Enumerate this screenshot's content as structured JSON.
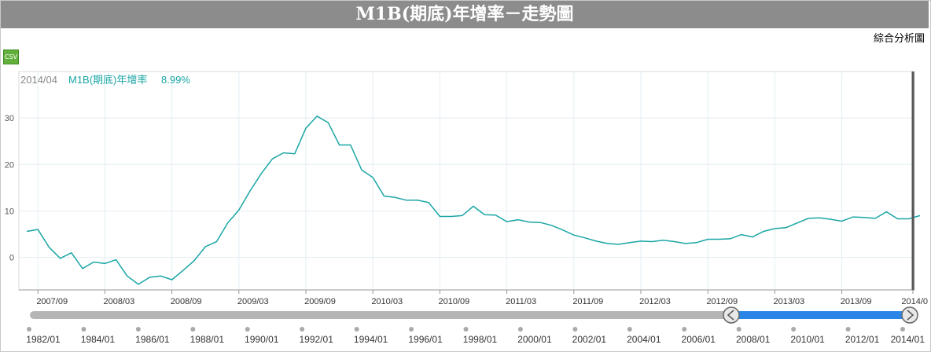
{
  "header": {
    "title": "M1B(期底)年增率－走勢圖"
  },
  "toolbar": {
    "analysis_link": "綜合分析圖",
    "csv_label": "CSV"
  },
  "tooltip": {
    "date": "2014/04",
    "series_label": "M1B(期底)年增率",
    "value_text": "8.99%"
  },
  "colors": {
    "line": "#1aa5a5",
    "title_bg": "#8c8c8c",
    "selection": "#2b85e6"
  },
  "chart_data": {
    "type": "line",
    "title": "M1B(期底)年增率－走勢圖",
    "xlabel": "",
    "ylabel": "",
    "ylim": [
      -7,
      40
    ],
    "y_ticks": [
      0,
      10,
      20,
      30
    ],
    "x_ticks": [
      "2007/09",
      "2008/03",
      "2008/09",
      "2009/03",
      "2009/09",
      "2010/03",
      "2010/09",
      "2011/03",
      "2011/09",
      "2012/03",
      "2012/09",
      "2013/03",
      "2013/09",
      "2014/0"
    ],
    "grid": true,
    "series": [
      {
        "name": "M1B(期底)年增率",
        "x": [
          "2007/08",
          "2007/09",
          "2007/10",
          "2007/11",
          "2007/12",
          "2008/01",
          "2008/02",
          "2008/03",
          "2008/04",
          "2008/05",
          "2008/06",
          "2008/07",
          "2008/08",
          "2008/09",
          "2008/10",
          "2008/11",
          "2008/12",
          "2009/01",
          "2009/02",
          "2009/03",
          "2009/04",
          "2009/05",
          "2009/06",
          "2009/07",
          "2009/08",
          "2009/09",
          "2009/10",
          "2009/11",
          "2009/12",
          "2010/01",
          "2010/02",
          "2010/03",
          "2010/04",
          "2010/05",
          "2010/06",
          "2010/07",
          "2010/08",
          "2010/09",
          "2010/10",
          "2010/11",
          "2010/12",
          "2011/01",
          "2011/02",
          "2011/03",
          "2011/04",
          "2011/05",
          "2011/06",
          "2011/07",
          "2011/08",
          "2011/09",
          "2011/10",
          "2011/11",
          "2011/12",
          "2012/01",
          "2012/02",
          "2012/03",
          "2012/04",
          "2012/05",
          "2012/06",
          "2012/07",
          "2012/08",
          "2012/09",
          "2012/10",
          "2012/11",
          "2012/12",
          "2013/01",
          "2013/02",
          "2013/03",
          "2013/04",
          "2013/05",
          "2013/06",
          "2013/07",
          "2013/08",
          "2013/09",
          "2013/10",
          "2013/11",
          "2013/12",
          "2014/01",
          "2014/02",
          "2014/03",
          "2014/04"
        ],
        "values": [
          5.6,
          6.0,
          2.2,
          -0.2,
          1.0,
          -2.4,
          -1.0,
          -1.3,
          -0.5,
          -4.0,
          -5.8,
          -4.3,
          -4.0,
          -4.8,
          -2.8,
          -0.7,
          2.3,
          3.4,
          7.4,
          10.2,
          14.3,
          18.0,
          21.2,
          22.5,
          22.3,
          27.8,
          30.4,
          29.0,
          24.2,
          24.2,
          18.8,
          17.2,
          13.2,
          12.9,
          12.3,
          12.3,
          11.8,
          8.8,
          8.8,
          9.0,
          11.0,
          9.2,
          9.1,
          7.7,
          8.1,
          7.6,
          7.5,
          6.9,
          5.9,
          4.8,
          4.2,
          3.5,
          3.0,
          2.8,
          3.2,
          3.5,
          3.4,
          3.7,
          3.4,
          3.0,
          3.2,
          3.9,
          3.9,
          4.0,
          4.9,
          4.4,
          5.6,
          6.2,
          6.4,
          7.4,
          8.4,
          8.5,
          8.2,
          7.8,
          8.7,
          8.6,
          8.4,
          9.8,
          8.3,
          8.3,
          8.99
        ]
      }
    ],
    "navigator": {
      "labels": [
        "1982/01",
        "1984/01",
        "1986/01",
        "1988/01",
        "1990/01",
        "1992/01",
        "1994/01",
        "1996/01",
        "1998/01",
        "2000/01",
        "2002/01",
        "2004/01",
        "2006/01",
        "2008/01",
        "2010/01",
        "2012/01",
        "2014/01"
      ],
      "selected_range": [
        "2007/08",
        "2014/04"
      ]
    }
  }
}
